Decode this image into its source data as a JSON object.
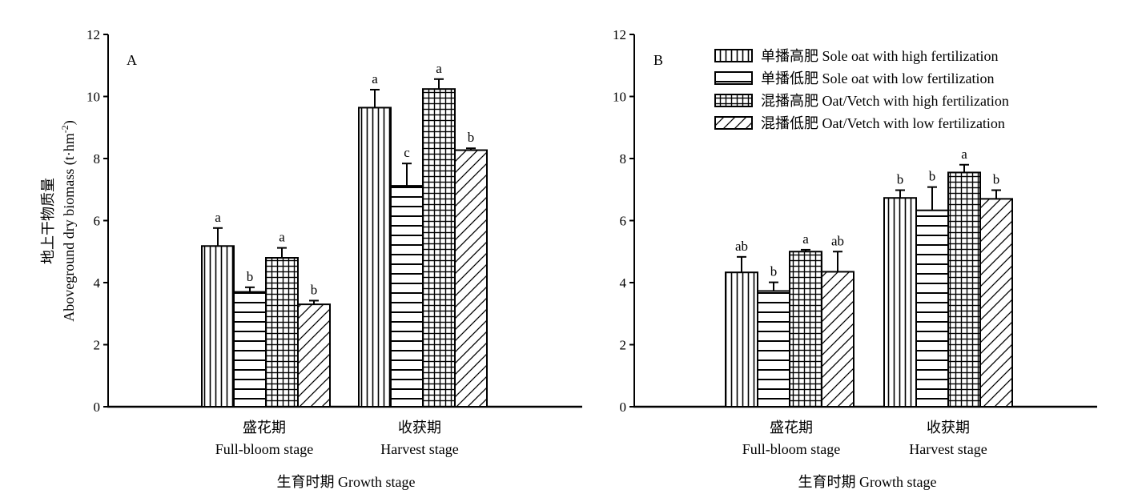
{
  "chart_data": [
    {
      "type": "bar",
      "panel_label": "A",
      "categories": [
        {
          "zh": "盛花期",
          "en": "Full-bloom stage"
        },
        {
          "zh": "收获期",
          "en": "Harvest stage"
        }
      ],
      "series": [
        {
          "values": [
            5.18,
            9.64
          ],
          "errors": [
            0.58,
            0.58
          ],
          "sig": [
            "a",
            "a"
          ],
          "pattern": "vertical"
        },
        {
          "values": [
            3.7,
            7.12
          ],
          "errors": [
            0.15,
            0.72
          ],
          "sig": [
            "b",
            "c"
          ],
          "pattern": "horizontal"
        },
        {
          "values": [
            4.8,
            10.24
          ],
          "errors": [
            0.32,
            0.32
          ],
          "sig": [
            "a",
            "a"
          ],
          "pattern": "grid"
        },
        {
          "values": [
            3.3,
            8.27
          ],
          "errors": [
            0.12,
            0.06
          ],
          "sig": [
            "b",
            "b"
          ],
          "pattern": "diagonal"
        }
      ],
      "ylabel_zh": "地上干物质量",
      "ylabel_en": "Aboveground dry biomass (t·hm",
      "ylabel_sup": "-2",
      "ylabel_close": ")",
      "xlabel": "生育时期 Growth stage",
      "ylim": [
        0,
        12
      ],
      "yticks": [
        "0",
        "2",
        "4",
        "6",
        "8",
        "10",
        "12"
      ],
      "grid": false
    },
    {
      "type": "bar",
      "panel_label": "B",
      "categories": [
        {
          "zh": "盛花期",
          "en": "Full-bloom stage"
        },
        {
          "zh": "收获期",
          "en": "Harvest stage"
        }
      ],
      "series": [
        {
          "name": "单播高肥 Sole oat with high fertilization",
          "values": [
            4.33,
            6.73
          ],
          "errors": [
            0.5,
            0.25
          ],
          "sig": [
            "ab",
            "b"
          ],
          "pattern": "vertical"
        },
        {
          "name": "单播低肥 Sole oat with low fertilization",
          "values": [
            3.73,
            6.33
          ],
          "errors": [
            0.28,
            0.75
          ],
          "sig": [
            "b",
            "b"
          ],
          "pattern": "horizontal"
        },
        {
          "name": "混播高肥 Oat/Vetch with high fertilization",
          "values": [
            5.0,
            7.55
          ],
          "errors": [
            0.06,
            0.25
          ],
          "sig": [
            "a",
            "a"
          ],
          "pattern": "grid"
        },
        {
          "name": "混播低肥 Oat/Vetch with low fertilization",
          "values": [
            4.35,
            6.7
          ],
          "errors": [
            0.65,
            0.28
          ],
          "sig": [
            "ab",
            "b"
          ],
          "pattern": "diagonal"
        }
      ],
      "xlabel": "生育时期 Growth stage",
      "ylim": [
        0,
        12
      ],
      "yticks": [
        "0",
        "2",
        "4",
        "6",
        "8",
        "10",
        "12"
      ],
      "legend_position": "top",
      "grid": false
    }
  ]
}
